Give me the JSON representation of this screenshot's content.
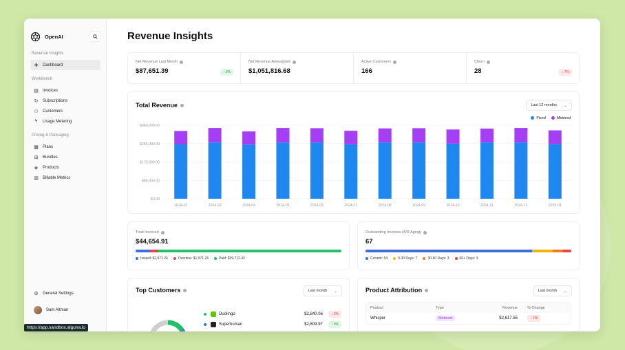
{
  "brand": {
    "name": "OpenAI"
  },
  "sidebar": {
    "sections": [
      {
        "title": "Revenue Insights",
        "items": [
          {
            "label": "Dashboard",
            "icon": "plus-icon",
            "active": true
          }
        ]
      },
      {
        "title": "Workbench",
        "items": [
          {
            "label": "Invoices",
            "icon": "invoice-icon"
          },
          {
            "label": "Subscriptions",
            "icon": "refresh-icon"
          },
          {
            "label": "Customers",
            "icon": "users-icon"
          },
          {
            "label": "Usage Metering",
            "icon": "bolt-icon"
          }
        ]
      },
      {
        "title": "Pricing & Packaging",
        "items": [
          {
            "label": "Plans",
            "icon": "grid-icon"
          },
          {
            "label": "Bundles",
            "icon": "bundle-icon"
          },
          {
            "label": "Products",
            "icon": "box-icon"
          },
          {
            "label": "Billable Metrics",
            "icon": "chart-icon"
          }
        ]
      }
    ],
    "settings_label": "General Settings",
    "user_name": "Sam Altman"
  },
  "page_title": "Revenue Insights",
  "kpis": [
    {
      "label": "Net Revenue Last Month",
      "value": "$87,651.39",
      "delta": "↑ 3%",
      "dir": "up"
    },
    {
      "label": "Net Revenue Annualized",
      "value": "$1,051,816.68"
    },
    {
      "label": "Active Customers",
      "value": "166"
    },
    {
      "label": "Churn",
      "value": "28",
      "delta": "↓ 7%",
      "dir": "down"
    }
  ],
  "revenue": {
    "title": "Total Revenue",
    "range": "Last 12 months",
    "legend": [
      {
        "name": "Fixed",
        "color": "#1e88f0"
      },
      {
        "name": "Metered",
        "color": "#a43ff5"
      }
    ]
  },
  "chart_data": {
    "type": "bar",
    "stacked": true,
    "categories": [
      "2024-02",
      "2024-03",
      "2024-04",
      "2024-05",
      "2024-06",
      "2024-07",
      "2024-08",
      "2024-09",
      "2024-10",
      "2024-11",
      "2024-12",
      "2025-01"
    ],
    "series": [
      {
        "name": "Fixed",
        "values": [
          251000,
          260000,
          250000,
          260000,
          260000,
          252000,
          260000,
          260000,
          255000,
          260000,
          260000,
          253000
        ]
      },
      {
        "name": "Metered",
        "values": [
          62000,
          67000,
          61000,
          67000,
          66000,
          62000,
          65000,
          66000,
          65000,
          64000,
          67000,
          63000
        ]
      }
    ],
    "yticks": [
      "$340,000.00",
      "$255,000.00",
      "$170,000.00",
      "$85,000.00",
      "$0.00"
    ],
    "ylim": [
      0,
      340000
    ],
    "colors": [
      "#1e88f0",
      "#a43ff5"
    ],
    "grid": true,
    "legend_position": "top-right"
  },
  "invoiced": {
    "label": "Total Invoiced",
    "value": "$44,654.91",
    "segments": [
      {
        "fraction": 0.066,
        "color": "#3b6fe0"
      },
      {
        "fraction": 0.044,
        "color": "#e54545"
      },
      {
        "fraction": 0.89,
        "color": "#22c06a"
      }
    ],
    "legend": [
      {
        "text": "Issued: $2,971.24",
        "color": "#3b6fe0"
      },
      {
        "text": "Overdue: $1,971.24",
        "color": "#e54545"
      },
      {
        "text": "Paid: $39,712.43",
        "color": "#22c06a"
      }
    ]
  },
  "outstanding": {
    "label": "Outstanding Invoices (A/R Aging)",
    "value": "67",
    "segments": [
      {
        "fraction": 0.81,
        "color": "#3b6fe0"
      },
      {
        "fraction": 0.1,
        "color": "#f0b400"
      },
      {
        "fraction": 0.05,
        "color": "#f07820"
      },
      {
        "fraction": 0.04,
        "color": "#e54545"
      }
    ],
    "legend": [
      {
        "text": "Current: 54",
        "color": "#3b6fe0"
      },
      {
        "text": "0-30 Days: 7",
        "color": "#f0b400"
      },
      {
        "text": "30-60 Days: 3",
        "color": "#f07820"
      },
      {
        "text": "60+ Days: 3",
        "color": "#e54545"
      }
    ]
  },
  "top_customers": {
    "title": "Top Customers",
    "range": "Last month",
    "rows": [
      {
        "name": "Duolingo",
        "amount": "$2,840.06",
        "delta": "↓ 1%",
        "dir": "down",
        "dot": "#22c06a",
        "logo": "#58cc02"
      },
      {
        "name": "Superhuman",
        "amount": "$2,809.97",
        "delta": "↑ 0%",
        "dir": "up",
        "dot": "#3b6fe0",
        "logo": "#222222"
      }
    ]
  },
  "attribution": {
    "title": "Product Attribution",
    "range": "Last month",
    "headers": [
      "Product",
      "Type",
      "Revenue",
      "% Change"
    ],
    "rows": [
      {
        "product": "Whisper",
        "type": "Metered",
        "revenue": "$2,617.55",
        "change": "↓ 1%"
      }
    ]
  },
  "status_url": "https://app.sandbox.alguna.io"
}
